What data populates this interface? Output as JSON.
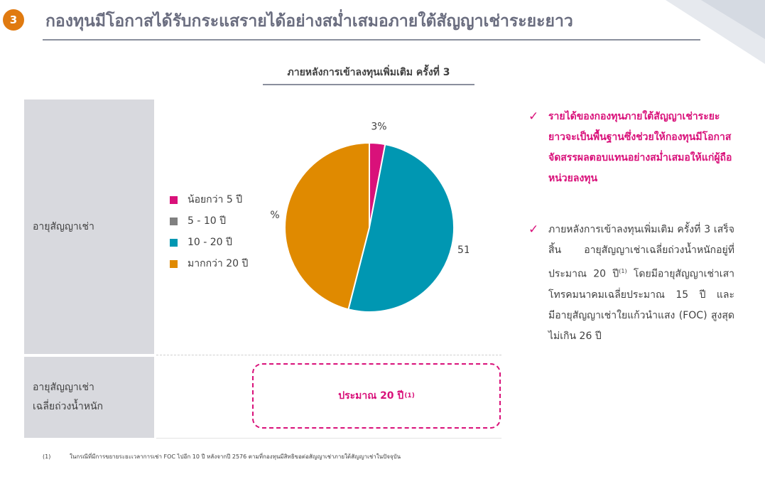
{
  "header": {
    "section_number": "3",
    "title": "กองทุนมีโอกาสได้รับกระแสรายได้อย่างสม่ำเสมอภายใต้สัญญาเช่าระยะยาว"
  },
  "chart_section": {
    "subtitle": "ภายหลังการเข้าลงทุนเพิ่มเติม ครั้งที่ 3"
  },
  "rows": {
    "lease_term_label": "อายุสัญญาเช่า",
    "weighted_label_line1": "อายุสัญญาเช่า",
    "weighted_label_line2": "เฉลี่ยถ่วงน้ำหนัก",
    "weighted_value": "ประมาณ 20 ปี",
    "weighted_value_note": "(1)"
  },
  "chart_data": {
    "type": "pie",
    "title": "",
    "categories": [
      "น้อยกว่า 5 ปี",
      "5 - 10 ปี",
      "10 - 20 ปี",
      "มากกว่า 20 ปี"
    ],
    "values": [
      3,
      0,
      51,
      46
    ],
    "data_labels": [
      "3%",
      "",
      "51%",
      "46%"
    ],
    "colors": [
      "#d9117a",
      "#808080",
      "#0097b2",
      "#e08a00"
    ],
    "legend_position": "left",
    "start_angle_deg": 0,
    "direction": "clockwise"
  },
  "bullets": [
    {
      "text": "รายได้ของกองทุนภายใต้สัญญาเช่าระยะยาวจะเป็นพื้นฐานซึ่งช่วยให้กองทุนมีโอกาสจัดสรรผลตอบแทนอย่างสม่ำเสมอให้แก่ผู้ถือหน่วยลงทุน",
      "color": "#d9117a"
    },
    {
      "text_before": "ภายหลังการเข้าลงทุนเพิ่มเติม ครั้งที่ 3 เสร็จสิ้น อายุสัญญาเช่าเฉลี่ยถ่วงน้ำหนักอยู่ที่ประมาณ 20 ปี",
      "note": "(1)",
      "text_after": " โดยมีอายุสัญญาเช่าเสาโทรคมนาคมเฉลี่ยประมาณ 15 ปี และมีอายุสัญญาเช่าใยแก้วนำแสง (FOC) สูงสุดไม่เกิน 26 ปี"
    }
  ],
  "footnote": {
    "marker": "(1)",
    "text": "ในกรณีที่มีการขยายระยะเวลาการเช่า FOC ไปอีก 10 ปี หลังจากปี 2576 ตามที่กองทุนมีสิทธิขอต่อสัญญาเช่าภายใต้สัญญาเช่าในปัจจุบัน"
  }
}
